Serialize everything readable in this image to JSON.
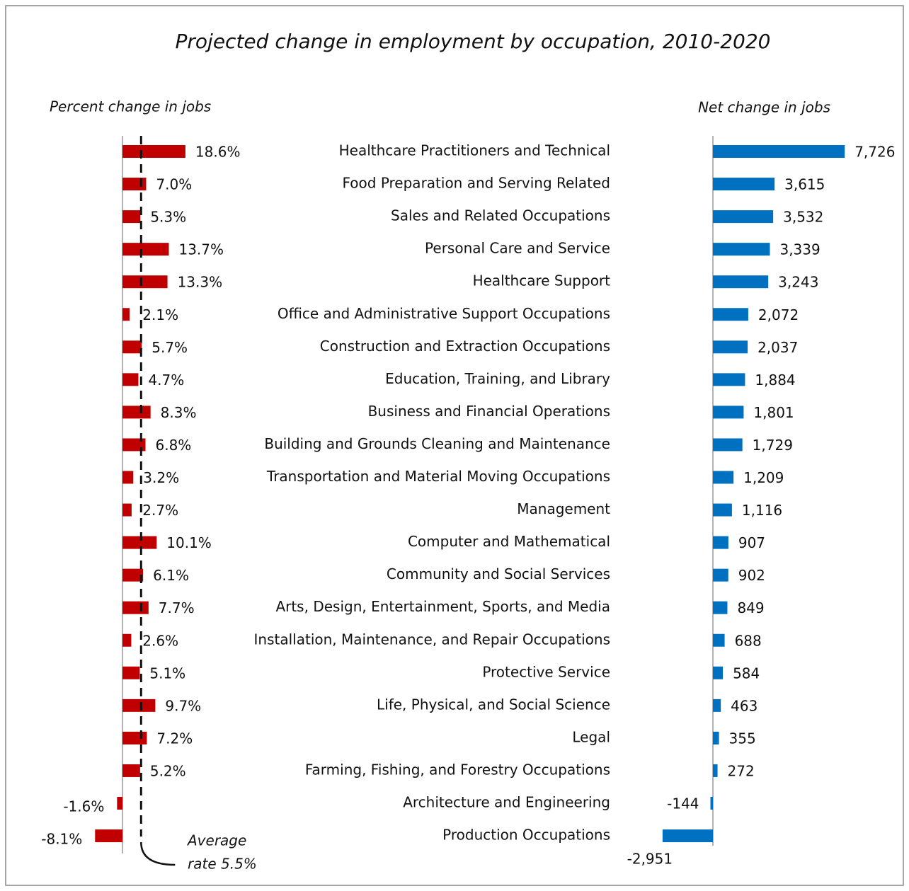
{
  "chart_data": {
    "type": "bar",
    "orientation": "horizontal",
    "title": "Projected change in employment by occupation, 2010-2020",
    "categories": [
      "Healthcare Practitioners and Technical",
      "Food Preparation and Serving Related",
      "Sales and Related Occupations",
      "Personal Care and Service",
      "Healthcare Support",
      "Office and Administrative Support Occupations",
      "Construction and Extraction Occupations",
      "Education, Training, and Library",
      "Business and Financial Operations",
      "Building and Grounds Cleaning and Maintenance",
      "Transportation and Material Moving Occupations",
      "Management",
      "Computer and Mathematical",
      "Community and Social Services",
      "Arts, Design, Entertainment, Sports, and Media",
      "Installation, Maintenance, and Repair Occupations",
      "Protective Service",
      "Life, Physical, and Social Science",
      "Legal",
      "Farming, Fishing, and Forestry Occupations",
      "Architecture and Engineering",
      "Production Occupations"
    ],
    "series": [
      {
        "name": "Percent change in jobs",
        "color": "#c00000",
        "values": [
          18.6,
          7.0,
          5.3,
          13.7,
          13.3,
          2.1,
          5.7,
          4.7,
          8.3,
          6.8,
          3.2,
          2.7,
          10.1,
          6.1,
          7.7,
          2.6,
          5.1,
          9.7,
          7.2,
          5.2,
          -1.6,
          -8.1
        ],
        "value_labels": [
          "18.6%",
          "7.0%",
          "5.3%",
          "13.7%",
          "13.3%",
          "2.1%",
          "5.7%",
          "4.7%",
          "8.3%",
          "6.8%",
          "3.2%",
          "2.7%",
          "10.1%",
          "6.1%",
          "7.7%",
          "2.6%",
          "5.1%",
          "9.7%",
          "7.2%",
          "5.2%",
          "-1.6%",
          "-8.1%"
        ]
      },
      {
        "name": "Net change in jobs",
        "color": "#0070c0",
        "values": [
          7726,
          3615,
          3532,
          3339,
          3243,
          2072,
          2037,
          1884,
          1801,
          1729,
          1209,
          1116,
          907,
          902,
          849,
          688,
          584,
          463,
          355,
          272,
          -144,
          -2951
        ],
        "value_labels": [
          "7,726",
          "3,615",
          "3,532",
          "3,339",
          "3,243",
          "2,072",
          "2,037",
          "1,884",
          "1,801",
          "1,729",
          "1,209",
          "1,116",
          "907",
          "902",
          "849",
          "688",
          "584",
          "463",
          "355",
          "272",
          "-144",
          "-2,951"
        ]
      }
    ],
    "reference_line": {
      "value": 5.5,
      "label_lines": [
        "Average",
        "rate 5.5%"
      ]
    }
  }
}
